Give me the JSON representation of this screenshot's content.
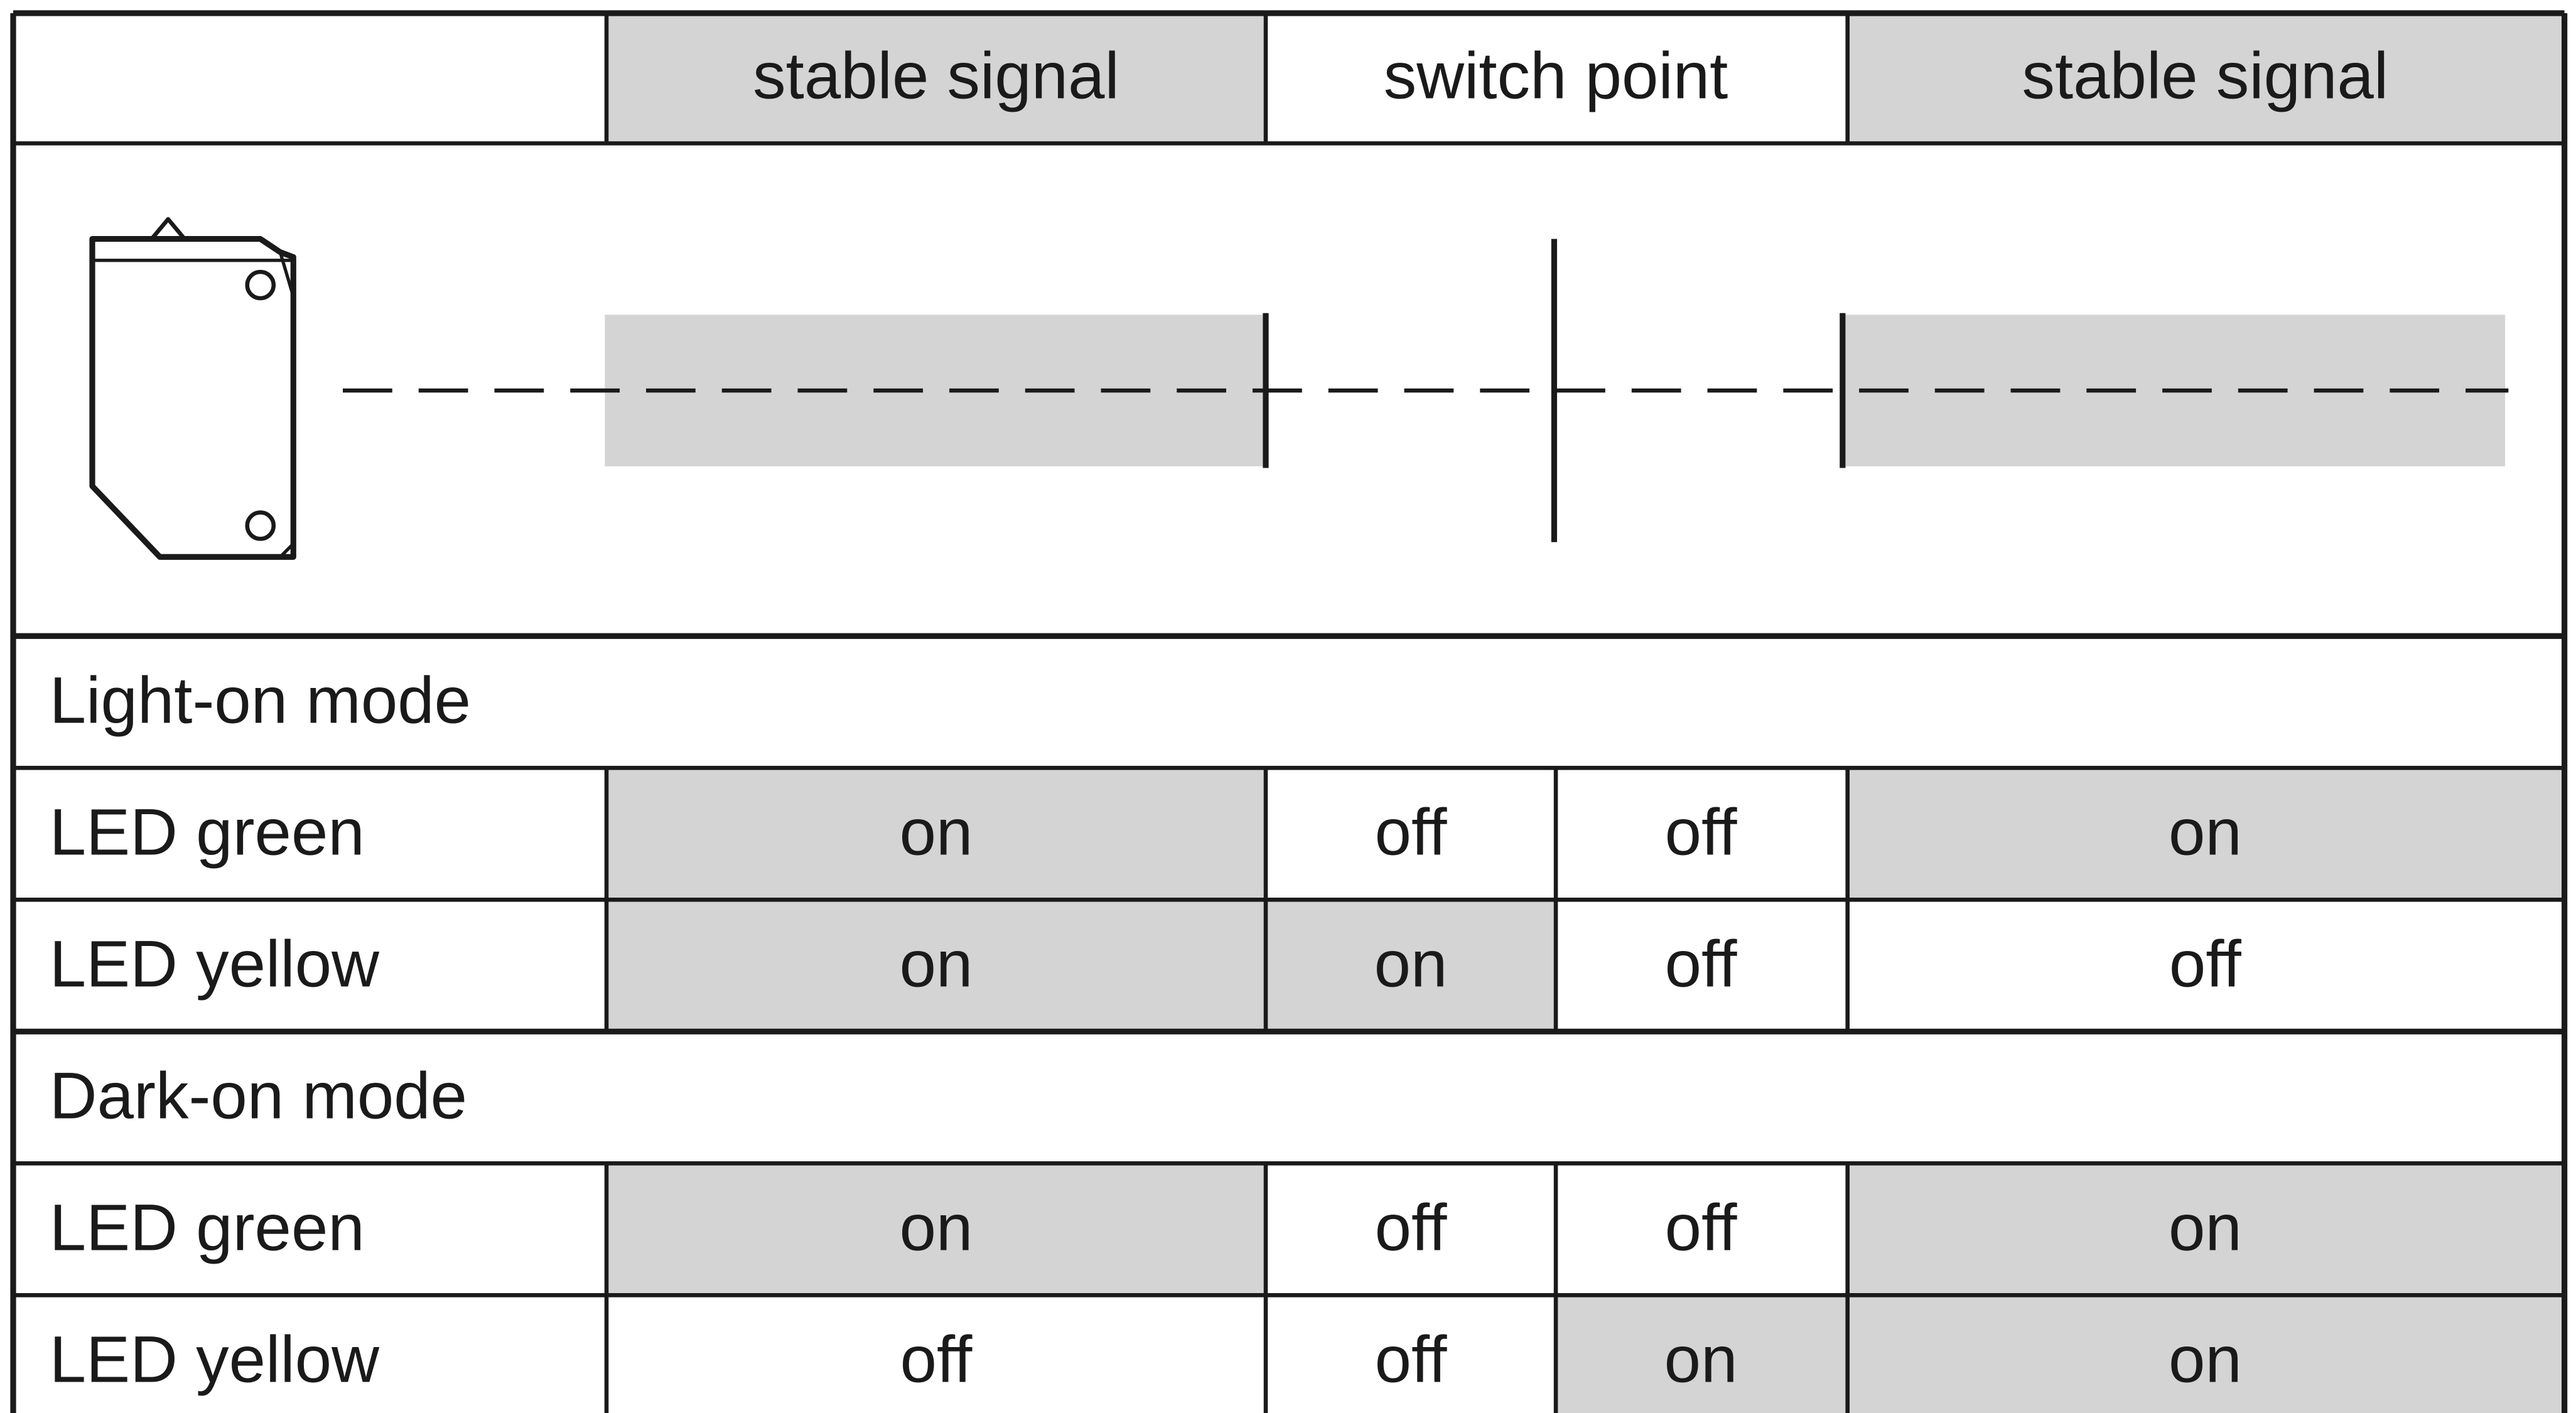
{
  "header": [
    "stable signal",
    "switch point",
    "stable signal"
  ],
  "modes": [
    {
      "title": "Light-on mode",
      "rows": [
        {
          "label": "LED green",
          "cells": [
            "on",
            "off",
            "off",
            "on"
          ]
        },
        {
          "label": "LED yellow",
          "cells": [
            "on",
            "on",
            "off",
            "off"
          ]
        }
      ]
    },
    {
      "title": "Dark-on mode",
      "rows": [
        {
          "label": "LED green",
          "cells": [
            "on",
            "off",
            "off",
            "on"
          ]
        },
        {
          "label": "LED yellow",
          "cells": [
            "off",
            "off",
            "on",
            "on"
          ]
        }
      ]
    }
  ]
}
